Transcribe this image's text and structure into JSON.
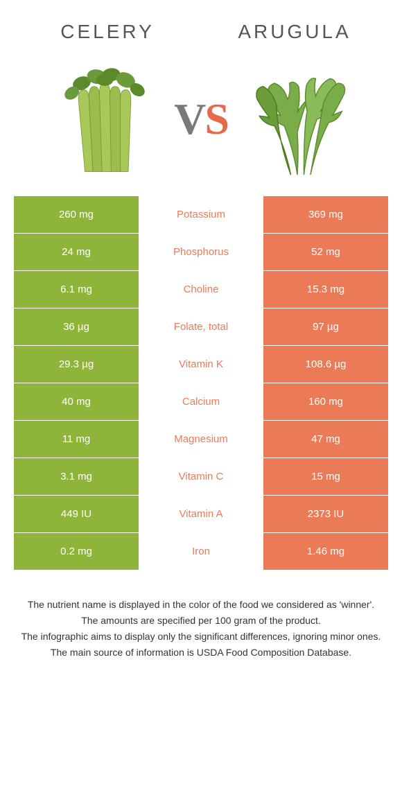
{
  "left_food": "Celery",
  "right_food": "Arugula",
  "vs_v": "V",
  "vs_s": "S",
  "colors": {
    "left_bg": "#8fb43a",
    "right_bg": "#eb7a56",
    "left_text": "#ffffff",
    "right_text": "#ffffff",
    "winner_left": "#8fb43a",
    "winner_right": "#eb7a56"
  },
  "rows": [
    {
      "left": "260 mg",
      "label": "Potassium",
      "right": "369 mg",
      "winner": "right"
    },
    {
      "left": "24 mg",
      "label": "Phosphorus",
      "right": "52 mg",
      "winner": "right"
    },
    {
      "left": "6.1 mg",
      "label": "Choline",
      "right": "15.3 mg",
      "winner": "right"
    },
    {
      "left": "36 µg",
      "label": "Folate, total",
      "right": "97 µg",
      "winner": "right"
    },
    {
      "left": "29.3 µg",
      "label": "Vitamin K",
      "right": "108.6 µg",
      "winner": "right"
    },
    {
      "left": "40 mg",
      "label": "Calcium",
      "right": "160 mg",
      "winner": "right"
    },
    {
      "left": "11 mg",
      "label": "Magnesium",
      "right": "47 mg",
      "winner": "right"
    },
    {
      "left": "3.1 mg",
      "label": "Vitamin C",
      "right": "15 mg",
      "winner": "right"
    },
    {
      "left": "449 IU",
      "label": "Vitamin A",
      "right": "2373 IU",
      "winner": "right"
    },
    {
      "left": "0.2 mg",
      "label": "Iron",
      "right": "1.46 mg",
      "winner": "right"
    }
  ],
  "footer": [
    "The nutrient name is displayed in the color of the food we considered as 'winner'.",
    "The amounts are specified per 100 gram of the product.",
    "The infographic aims to display only the significant differences, ignoring minor ones.",
    "The main source of information is USDA Food Composition Database."
  ]
}
